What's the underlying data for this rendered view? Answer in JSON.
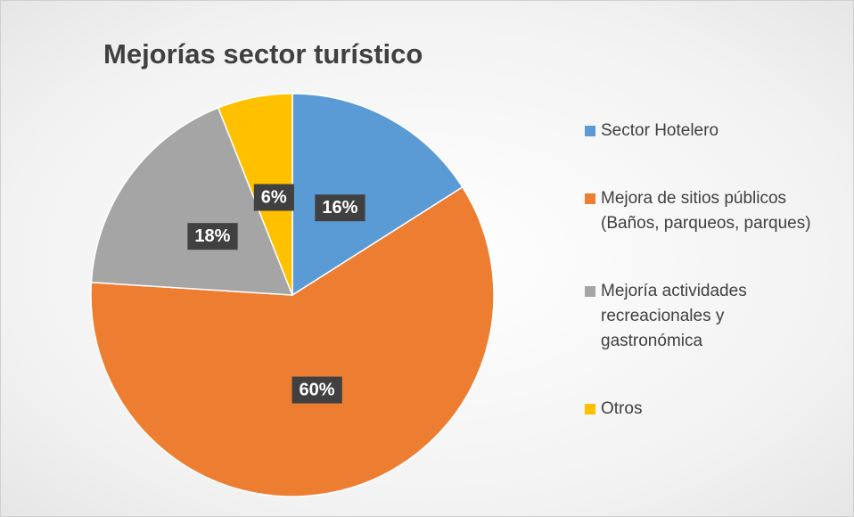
{
  "chart_data": {
    "type": "pie",
    "title": "Mejorías sector turístico",
    "categories": [
      "Sector Hotelero",
      "Mejora de sitios públicos (Baños, parqueos, parques)",
      "Mejoría actividades recreacionales y gastronómica",
      "Otros"
    ],
    "values": [
      16,
      60,
      18,
      6
    ],
    "value_labels": [
      "16%",
      "60%",
      "18%",
      "6%"
    ],
    "colors": [
      "#5b9bd5",
      "#ed7d31",
      "#a5a5a5",
      "#ffc000"
    ],
    "legend": "right"
  }
}
